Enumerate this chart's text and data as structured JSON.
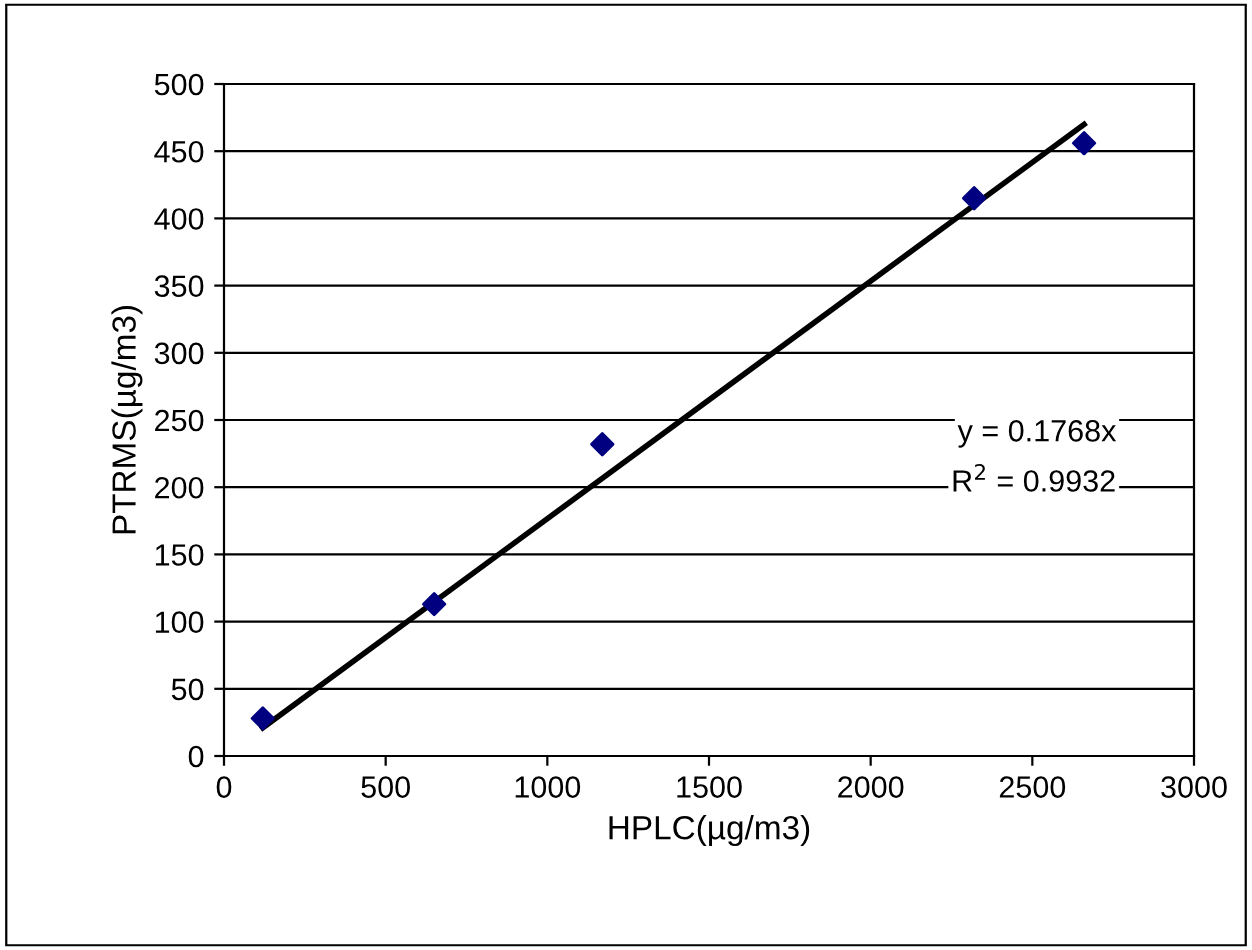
{
  "chart_data": {
    "type": "scatter",
    "xlabel": "HPLC(µg/m3)",
    "ylabel": "PTRMS(µg/m3)",
    "xlim": [
      0,
      3000
    ],
    "xticks": [
      0,
      500,
      1000,
      1500,
      2000,
      2500,
      3000
    ],
    "ylim": [
      0,
      500
    ],
    "yticks": [
      0,
      50,
      100,
      150,
      200,
      250,
      300,
      350,
      400,
      450,
      500
    ],
    "grid": "y",
    "marker": "diamond",
    "series": [
      {
        "color": "#000080",
        "x": [
          120,
          650,
          1170,
          2320,
          2660
        ],
        "values": [
          28,
          113,
          232,
          415,
          456
        ]
      },
      {
        "type": "line",
        "color": "#000000",
        "x": [
          120,
          2660
        ],
        "values": [
          21,
          470
        ],
        "marker": "none",
        "line_style": "solid"
      }
    ],
    "annotations": [
      "y = 0.1768x",
      "R$^{2}$ = 0.9932"
    ]
  }
}
